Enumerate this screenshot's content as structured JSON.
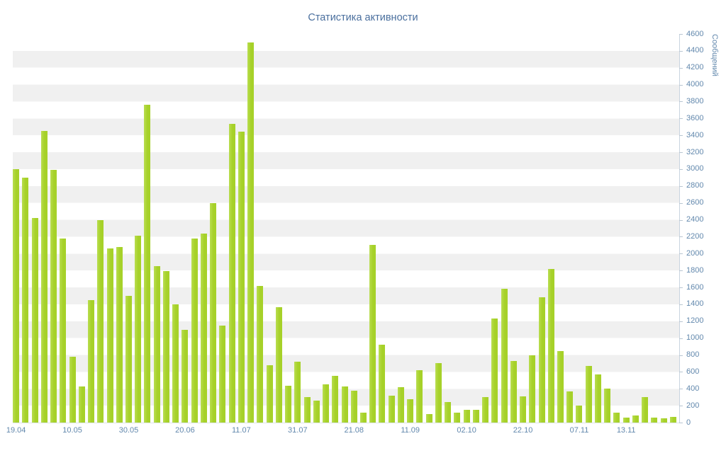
{
  "colors": {
    "title": "#4a6f9e",
    "axis_text": "#6288ad",
    "stripe": "#f0f0f0",
    "bar": "#a6d129",
    "bar_edge": "#b9dd50",
    "axis_line": "#c9d4df"
  },
  "chart_data": {
    "type": "bar",
    "title": "Статистика активности",
    "xlabel": "",
    "ylabel": "Сообщений",
    "ylim": [
      0,
      4600
    ],
    "y_tick_step": 200,
    "grid": "horizontal-striped-bands",
    "legend": "none",
    "y_tick_labels": [
      "0",
      "200",
      "400",
      "600",
      "800",
      "1000",
      "1200",
      "1400",
      "1600",
      "1800",
      "2000",
      "2200",
      "2400",
      "2600",
      "2800",
      "3000",
      "3200",
      "3400",
      "3600",
      "3800",
      "4000",
      "4200",
      "4400",
      "4600"
    ],
    "values": [
      3000,
      2900,
      2420,
      3450,
      2990,
      2180,
      780,
      430,
      1450,
      2400,
      2060,
      2080,
      1500,
      2210,
      3760,
      1850,
      1790,
      1400,
      1100,
      2180,
      2240,
      2600,
      1150,
      3540,
      3440,
      4500,
      1620,
      680,
      1370,
      440,
      720,
      300,
      260,
      450,
      550,
      430,
      380,
      120,
      2100,
      920,
      320,
      420,
      280,
      620,
      100,
      700,
      240,
      120,
      150,
      155,
      300,
      1230,
      1580,
      730,
      310,
      800,
      1480,
      1820,
      850,
      370,
      200,
      670,
      570,
      400,
      120,
      60,
      80,
      300,
      60,
      50,
      70
    ],
    "x_tick_labels": [
      {
        "index": 0,
        "label": "19.04"
      },
      {
        "index": 6,
        "label": "10.05"
      },
      {
        "index": 12,
        "label": "30.05"
      },
      {
        "index": 18,
        "label": "20.06"
      },
      {
        "index": 24,
        "label": "11.07"
      },
      {
        "index": 30,
        "label": "31.07"
      },
      {
        "index": 36,
        "label": "21.08"
      },
      {
        "index": 42,
        "label": "11.09"
      },
      {
        "index": 48,
        "label": "02.10"
      },
      {
        "index": 54,
        "label": "22.10"
      },
      {
        "index": 60,
        "label": "07.11"
      },
      {
        "index": 65,
        "label": "13.11"
      }
    ]
  }
}
